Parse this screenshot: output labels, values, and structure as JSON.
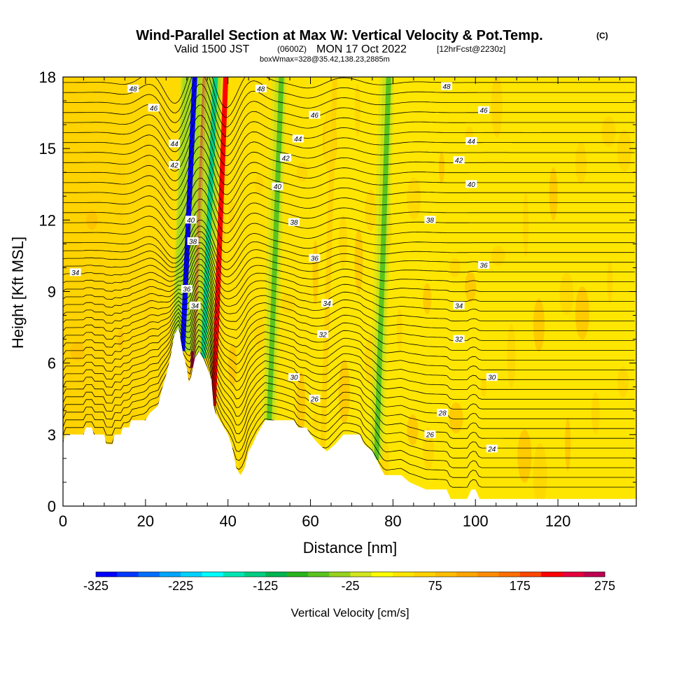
{
  "title": {
    "main": "Wind-Parallel Section at Max W: Vertical Velocity & Pot.Temp.",
    "copyright": "(C)",
    "line2_pre": "Valid 1500 JST",
    "line2_z": "(0600Z)",
    "line2_mid": "MON 17 Oct 2022",
    "line2_fcst": "[12hrFcst@2230z]",
    "line3": "boxWmax=328@35.42,138.23,2885m"
  },
  "chart_data": {
    "type": "heatmap",
    "title": "Wind-Parallel Section at Max W: Vertical Velocity & Pot.Temp.",
    "xlabel": "Distance [nm]",
    "ylabel": "Height [Kft MSL]",
    "xlim": [
      0,
      139
    ],
    "ylim": [
      0,
      18
    ],
    "xticks": [
      0,
      20,
      40,
      60,
      80,
      100,
      120
    ],
    "yticks": [
      0,
      3,
      6,
      9,
      12,
      15,
      18
    ],
    "grid": false,
    "colorbar": {
      "title": "Vertical Velocity [cm/s]",
      "min": -325,
      "max": 275,
      "step": 25,
      "tick_labels": [
        "-325",
        "-225",
        "-125",
        "-25",
        "75",
        "175",
        "275"
      ],
      "colors": [
        "#0000ff",
        "#0037ff",
        "#006eff",
        "#00a5ff",
        "#00d2ff",
        "#00ffff",
        "#00e6b4",
        "#00cd82",
        "#00b450",
        "#28b41e",
        "#5ac31e",
        "#96d21e",
        "#d2e61e",
        "#ffff00",
        "#ffe600",
        "#ffd200",
        "#ffbe00",
        "#ffa500",
        "#ff8c00",
        "#ff6e00",
        "#ff4600",
        "#ff0000",
        "#e6003c",
        "#be0050",
        "#8c0064",
        "#5a0078"
      ]
    },
    "updrafts": [
      {
        "x": 31.5,
        "w": 250
      },
      {
        "x": 36.5,
        "w": 200
      },
      {
        "x": 63,
        "w": 50
      }
    ],
    "downdrafts": [
      {
        "x": 29,
        "w": -325
      },
      {
        "x": 34,
        "w": -150
      },
      {
        "x": 50,
        "w": -75
      },
      {
        "x": 76,
        "w": -75
      }
    ],
    "terrain": [
      [
        0,
        2.6
      ],
      [
        0.5,
        3.0
      ],
      [
        5,
        3.0
      ],
      [
        5.5,
        3.3
      ],
      [
        7,
        3.3
      ],
      [
        7.5,
        3.0
      ],
      [
        10,
        3.0
      ],
      [
        10.5,
        2.6
      ],
      [
        12,
        2.6
      ],
      [
        12.5,
        3.0
      ],
      [
        14,
        3.0
      ],
      [
        14.5,
        3.3
      ],
      [
        16,
        3.3
      ],
      [
        16.5,
        3.6
      ],
      [
        20,
        3.6
      ],
      [
        21,
        3.9
      ],
      [
        23,
        4.2
      ],
      [
        24,
        4.9
      ],
      [
        25,
        5.5
      ],
      [
        26,
        6.2
      ],
      [
        27,
        7.2
      ],
      [
        28,
        7.5
      ],
      [
        29,
        6.5
      ],
      [
        30,
        5.8
      ],
      [
        30.5,
        5.2
      ],
      [
        31,
        5.4
      ],
      [
        32,
        6.2
      ],
      [
        33,
        6.5
      ],
      [
        34,
        6.2
      ],
      [
        35,
        5.8
      ],
      [
        36,
        5.3
      ],
      [
        36.5,
        4.2
      ],
      [
        37,
        3.9
      ],
      [
        38,
        3.6
      ],
      [
        39,
        3.3
      ],
      [
        40,
        3.0
      ],
      [
        41,
        2.5
      ],
      [
        42,
        1.6
      ],
      [
        43,
        1.3
      ],
      [
        44,
        1.6
      ],
      [
        45,
        2.3
      ],
      [
        46,
        2.6
      ],
      [
        47,
        3.0
      ],
      [
        48,
        3.3
      ],
      [
        49,
        3.6
      ],
      [
        50,
        3.6
      ],
      [
        52,
        3.6
      ],
      [
        56,
        3.6
      ],
      [
        57,
        3.3
      ],
      [
        59,
        3.3
      ],
      [
        60,
        3.0
      ],
      [
        62,
        2.6
      ],
      [
        64,
        2.3
      ],
      [
        66,
        2.6
      ],
      [
        68,
        3.0
      ],
      [
        72,
        3.0
      ],
      [
        73,
        2.6
      ],
      [
        75,
        2.3
      ],
      [
        77,
        1.6
      ],
      [
        78,
        1.3
      ],
      [
        82,
        1.3
      ],
      [
        84,
        1.0
      ],
      [
        88,
        0.7
      ],
      [
        93,
        0.7
      ],
      [
        94,
        0.3
      ],
      [
        98,
        0.3
      ],
      [
        99,
        0.7
      ],
      [
        100,
        0.7
      ],
      [
        101,
        0.3
      ],
      [
        139,
        0.3
      ]
    ],
    "contours": [
      {
        "level": "24",
        "x": 104,
        "y": 2.4
      },
      {
        "level": "26",
        "x": 89,
        "y": 3.0
      },
      {
        "level": "26",
        "x": 61,
        "y": 4.5
      },
      {
        "level": "28",
        "x": 92,
        "y": 3.9
      },
      {
        "level": "30",
        "x": 56,
        "y": 5.4
      },
      {
        "level": "30",
        "x": 104,
        "y": 5.4
      },
      {
        "level": "32",
        "x": 63,
        "y": 7.2
      },
      {
        "level": "32",
        "x": 96,
        "y": 7.0
      },
      {
        "level": "34",
        "x": 3,
        "y": 9.8
      },
      {
        "level": "34",
        "x": 64,
        "y": 8.5
      },
      {
        "level": "34",
        "x": 96,
        "y": 8.4
      },
      {
        "level": "34",
        "x": 32,
        "y": 8.4
      },
      {
        "level": "36",
        "x": 30,
        "y": 9.1
      },
      {
        "level": "36",
        "x": 61,
        "y": 10.4
      },
      {
        "level": "36",
        "x": 102,
        "y": 10.1
      },
      {
        "level": "38",
        "x": 31.5,
        "y": 11.1
      },
      {
        "level": "38",
        "x": 56,
        "y": 11.9
      },
      {
        "level": "38",
        "x": 89,
        "y": 12.0
      },
      {
        "level": "40",
        "x": 31,
        "y": 12.0
      },
      {
        "level": "40",
        "x": 52,
        "y": 13.4
      },
      {
        "level": "40",
        "x": 99,
        "y": 13.5
      },
      {
        "level": "42",
        "x": 27,
        "y": 14.3
      },
      {
        "level": "42",
        "x": 54,
        "y": 14.6
      },
      {
        "level": "42",
        "x": 96,
        "y": 14.5
      },
      {
        "level": "44",
        "x": 27,
        "y": 15.2
      },
      {
        "level": "44",
        "x": 57,
        "y": 15.4
      },
      {
        "level": "44",
        "x": 99,
        "y": 15.3
      },
      {
        "level": "46",
        "x": 22,
        "y": 16.7
      },
      {
        "level": "46",
        "x": 61,
        "y": 16.4
      },
      {
        "level": "46",
        "x": 102,
        "y": 16.6
      },
      {
        "level": "48",
        "x": 17,
        "y": 17.5
      },
      {
        "level": "48",
        "x": 48,
        "y": 17.5
      },
      {
        "level": "48",
        "x": 93,
        "y": 17.6
      }
    ]
  }
}
